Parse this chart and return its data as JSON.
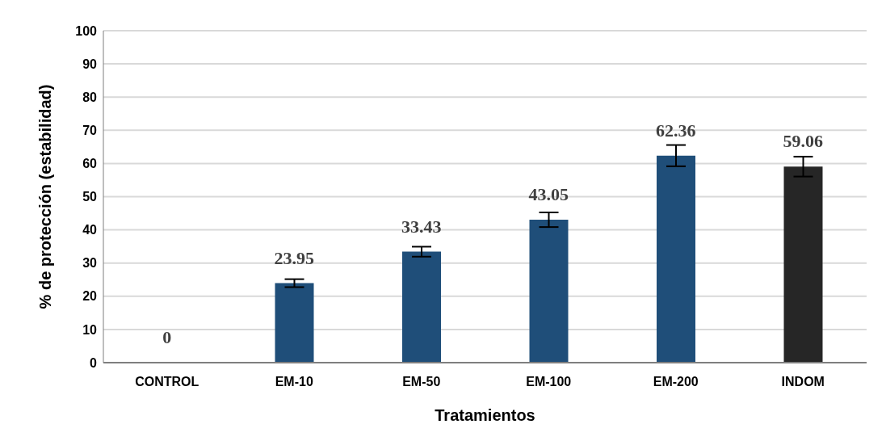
{
  "chart_data": {
    "type": "bar",
    "xlabel": "Tratamientos",
    "ylabel": "% de protección (estabilidad)",
    "categories": [
      "CONTROL",
      "EM-10",
      "EM-50",
      "EM-100",
      "EM-200",
      "INDOM"
    ],
    "values": [
      0,
      23.95,
      33.43,
      43.05,
      62.36,
      59.06
    ],
    "errors": [
      null,
      1.2,
      1.5,
      2.2,
      3.2,
      3.0
    ],
    "colors": [
      "#843c0c",
      "#1f4e79",
      "#1f4e79",
      "#1f4e79",
      "#1f4e79",
      "#262626"
    ],
    "ylim": [
      0,
      100
    ],
    "yticks": [
      0,
      10,
      20,
      30,
      40,
      50,
      60,
      70,
      80,
      90,
      100
    ],
    "grid": "y",
    "data_labels": true,
    "legend": false
  }
}
